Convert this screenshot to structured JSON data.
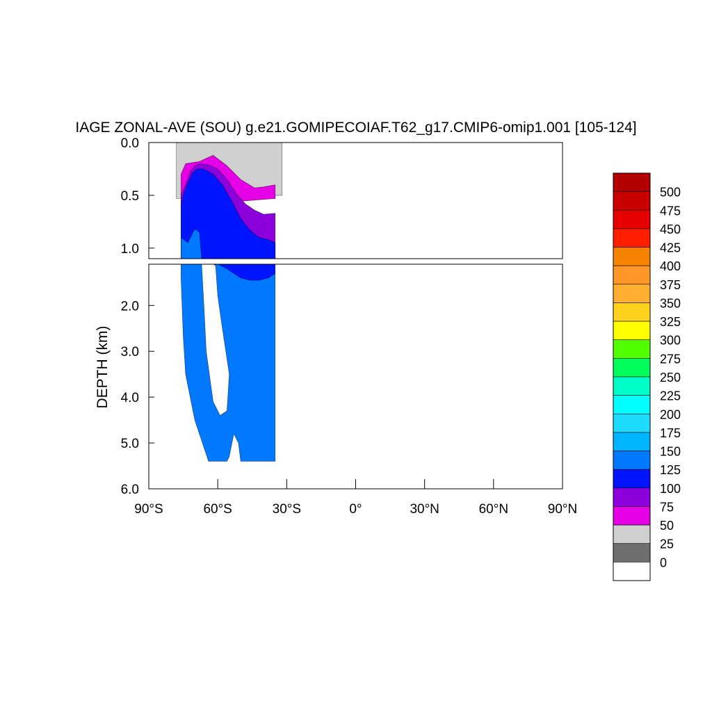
{
  "chart_data": {
    "type": "contour",
    "title": "IAGE ZONAL-AVE (SOU) g.e21.GOMIPECOIAF.T62_g17.CMIP6-omip1.001 [105-124]",
    "ylabel": "DEPTH (km)",
    "xlim": [
      -90,
      90
    ],
    "x_ticks": [
      {
        "value": -90,
        "label": "90°S"
      },
      {
        "value": -60,
        "label": "60°S"
      },
      {
        "value": -30,
        "label": "30°S"
      },
      {
        "value": 0,
        "label": "0°"
      },
      {
        "value": 30,
        "label": "30°N"
      },
      {
        "value": 60,
        "label": "60°N"
      },
      {
        "value": 90,
        "label": "90°N"
      }
    ],
    "upper_panel": {
      "ylim": [
        0.0,
        1.1
      ],
      "y_ticks": [
        {
          "value": 0.0,
          "label": "0.0"
        },
        {
          "value": 0.5,
          "label": "0.5"
        },
        {
          "value": 1.0,
          "label": "1.0"
        }
      ]
    },
    "lower_panel": {
      "ylim": [
        1.1,
        6.0
      ],
      "y_ticks": [
        {
          "value": 2.0,
          "label": "2.0"
        },
        {
          "value": 3.0,
          "label": "3.0"
        },
        {
          "value": 4.0,
          "label": "4.0"
        },
        {
          "value": 5.0,
          "label": "5.0"
        },
        {
          "value": 6.0,
          "label": "6.0"
        }
      ]
    },
    "colorbar": {
      "levels": [
        0,
        25,
        50,
        75,
        100,
        125,
        150,
        175,
        200,
        225,
        250,
        275,
        300,
        325,
        350,
        375,
        400,
        425,
        450,
        475,
        500
      ],
      "labels": [
        "0",
        "25",
        "50",
        "75",
        "100",
        "125",
        "150",
        "175",
        "200",
        "225",
        "250",
        "275",
        "300",
        "325",
        "350",
        "375",
        "400",
        "425",
        "450",
        "475",
        "500"
      ],
      "colors": [
        "#ffffff",
        "#6e6e6e",
        "#d0d0d0",
        "#e600e6",
        "#8c00dc",
        "#0014ff",
        "#0078ff",
        "#00b4ff",
        "#1edcff",
        "#00ffff",
        "#00ffc8",
        "#00ff5a",
        "#50ff00",
        "#ffff00",
        "#ffd21e",
        "#ffaf32",
        "#ff9628",
        "#f58200",
        "#ff1e00",
        "#e60000",
        "#c80000",
        "#b40000"
      ]
    },
    "fields": [
      {
        "level": 25,
        "upper": [
          [
            -78,
            0
          ],
          [
            -68,
            0
          ],
          [
            -55,
            0
          ],
          [
            -40,
            0
          ],
          [
            -32,
            0
          ],
          [
            -32,
            0.5
          ],
          [
            -35,
            0.5
          ],
          [
            -35,
            0.53
          ],
          [
            -78,
            0.53
          ]
        ],
        "lower": []
      },
      {
        "level": 50,
        "upper": [
          [
            -76,
            0.55
          ],
          [
            -76,
            0.3
          ],
          [
            -74,
            0.2
          ],
          [
            -68,
            0.18
          ],
          [
            -62,
            0.12
          ],
          [
            -56,
            0.22
          ],
          [
            -50,
            0.35
          ],
          [
            -44,
            0.43
          ],
          [
            -40,
            0.42
          ],
          [
            -35,
            0.4
          ],
          [
            -35,
            0.53
          ],
          [
            -76,
            0.6
          ]
        ],
        "lower": []
      },
      {
        "level": 75,
        "upper": [
          [
            -76,
            0.6
          ],
          [
            -76,
            0.5
          ],
          [
            -74,
            0.4
          ],
          [
            -72,
            0.28
          ],
          [
            -70,
            0.22
          ],
          [
            -68,
            0.2
          ],
          [
            -64,
            0.21
          ],
          [
            -60,
            0.25
          ],
          [
            -56,
            0.35
          ],
          [
            -52,
            0.48
          ],
          [
            -48,
            0.58
          ],
          [
            -44,
            0.64
          ],
          [
            -40,
            0.68
          ],
          [
            -35,
            0.67
          ],
          [
            -35,
            1.1
          ],
          [
            -76,
            1.1
          ]
        ],
        "lower": []
      },
      {
        "level": 100,
        "upper": [
          [
            -76,
            0.6
          ],
          [
            -75,
            0.5
          ],
          [
            -73,
            0.38
          ],
          [
            -71,
            0.29
          ],
          [
            -69,
            0.25
          ],
          [
            -66,
            0.25
          ],
          [
            -62,
            0.3
          ],
          [
            -58,
            0.4
          ],
          [
            -54,
            0.55
          ],
          [
            -50,
            0.72
          ],
          [
            -46,
            0.83
          ],
          [
            -42,
            0.9
          ],
          [
            -38,
            0.92
          ],
          [
            -35,
            0.95
          ],
          [
            -35,
            1.1
          ],
          [
            -76,
            1.1
          ]
        ],
        "lower": [
          [
            -76,
            1.1
          ],
          [
            -35,
            1.1
          ],
          [
            -35,
            1.3
          ],
          [
            -38,
            1.4
          ],
          [
            -42,
            1.5
          ],
          [
            -46,
            1.52
          ],
          [
            -50,
            1.5
          ],
          [
            -54,
            1.4
          ],
          [
            -58,
            1.2
          ],
          [
            -62,
            1.1
          ]
        ]
      },
      {
        "level": 125,
        "upper": [
          [
            -76,
            1.1
          ],
          [
            -76,
            0.9
          ],
          [
            -73,
            0.95
          ],
          [
            -70,
            0.82
          ],
          [
            -68,
            0.85
          ],
          [
            -67,
            1.1
          ]
        ],
        "lower": [
          [
            -76,
            1.1
          ],
          [
            -67,
            1.1
          ],
          [
            -66,
            2.0
          ],
          [
            -65,
            3.0
          ],
          [
            -62,
            4.1
          ],
          [
            -59,
            4.4
          ],
          [
            -56,
            4.3
          ],
          [
            -55,
            3.5
          ],
          [
            -58,
            2.5
          ],
          [
            -60,
            1.8
          ],
          [
            -61,
            1.1
          ],
          [
            -60,
            1.1
          ],
          [
            -56,
            1.2
          ],
          [
            -50,
            1.4
          ],
          [
            -46,
            1.45
          ],
          [
            -42,
            1.45
          ],
          [
            -38,
            1.4
          ],
          [
            -35,
            1.3
          ],
          [
            -35,
            5.4
          ],
          [
            -50,
            5.4
          ],
          [
            -51,
            5.0
          ],
          [
            -53,
            4.8
          ],
          [
            -55,
            5.3
          ],
          [
            -56,
            5.4
          ],
          [
            -64,
            5.4
          ],
          [
            -66,
            5.1
          ],
          [
            -68,
            4.8
          ],
          [
            -70,
            4.5
          ],
          [
            -72,
            4.0
          ],
          [
            -74,
            3.5
          ],
          [
            -75,
            2.7
          ],
          [
            -76,
            1.4
          ]
        ]
      }
    ]
  }
}
